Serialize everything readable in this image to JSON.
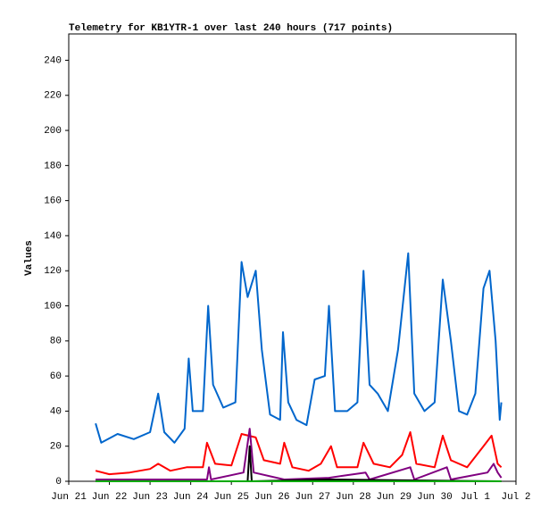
{
  "chart_data": {
    "type": "line",
    "title": "Telemetry for KB1YTR-1 over last 240 hours (717 points)",
    "y_label": "Values",
    "xlim": [
      0,
      11
    ],
    "xticks": [
      {
        "value": 0,
        "label": "Jun 21"
      },
      {
        "value": 1,
        "label": "Jun 22"
      },
      {
        "value": 2,
        "label": "Jun 23"
      },
      {
        "value": 3,
        "label": "Jun 24"
      },
      {
        "value": 4,
        "label": "Jun 25"
      },
      {
        "value": 5,
        "label": "Jun 26"
      },
      {
        "value": 6,
        "label": "Jun 27"
      },
      {
        "value": 7,
        "label": "Jun 28"
      },
      {
        "value": 8,
        "label": "Jun 29"
      },
      {
        "value": 9,
        "label": "Jun 30"
      },
      {
        "value": 10,
        "label": "Jul 1"
      },
      {
        "value": 11,
        "label": "Jul 2"
      }
    ],
    "ylim": [
      0,
      255
    ],
    "yticks": [
      0,
      20,
      40,
      60,
      80,
      100,
      120,
      140,
      160,
      180,
      200,
      220,
      240
    ],
    "series": [
      {
        "color": "#0066cc",
        "x": [
          0.66,
          0.8,
          1.2,
          1.6,
          2.0,
          2.2,
          2.35,
          2.6,
          2.85,
          2.95,
          3.05,
          3.3,
          3.43,
          3.55,
          3.8,
          4.1,
          4.25,
          4.4,
          4.6,
          4.75,
          4.95,
          5.2,
          5.27,
          5.4,
          5.6,
          5.85,
          6.05,
          6.3,
          6.4,
          6.55,
          6.85,
          7.1,
          7.25,
          7.4,
          7.6,
          7.85,
          8.1,
          8.35,
          8.5,
          8.75,
          9.0,
          9.2,
          9.4,
          9.6,
          9.8,
          10.0,
          10.2,
          10.35,
          10.5,
          10.6,
          10.64
        ],
        "values": [
          33,
          22,
          27,
          24,
          28,
          50,
          28,
          22,
          30,
          70,
          40,
          40,
          100,
          55,
          42,
          45,
          125,
          105,
          120,
          75,
          38,
          35,
          85,
          45,
          35,
          32,
          58,
          60,
          100,
          40,
          40,
          45,
          120,
          55,
          50,
          40,
          75,
          130,
          50,
          40,
          45,
          115,
          80,
          40,
          38,
          50,
          110,
          120,
          80,
          35,
          45
        ]
      },
      {
        "color": "#ff0000",
        "x": [
          0.66,
          1.0,
          1.5,
          2.0,
          2.2,
          2.5,
          2.9,
          3.3,
          3.4,
          3.6,
          4.0,
          4.25,
          4.6,
          4.8,
          5.2,
          5.3,
          5.5,
          5.9,
          6.2,
          6.45,
          6.6,
          7.1,
          7.25,
          7.5,
          7.9,
          8.2,
          8.4,
          8.55,
          9.0,
          9.2,
          9.4,
          9.8,
          10.2,
          10.4,
          10.55,
          10.64
        ],
        "values": [
          6,
          4,
          5,
          7,
          10,
          6,
          8,
          8,
          22,
          10,
          9,
          27,
          25,
          12,
          10,
          22,
          8,
          6,
          10,
          20,
          8,
          8,
          22,
          10,
          8,
          15,
          28,
          10,
          8,
          26,
          12,
          8,
          20,
          26,
          10,
          8
        ]
      },
      {
        "color": "#800080",
        "x": [
          0.66,
          3.4,
          3.45,
          3.5,
          4.3,
          4.45,
          4.55,
          5.3,
          6.4,
          7.3,
          7.4,
          8.4,
          8.5,
          9.3,
          9.4,
          10.3,
          10.45,
          10.55,
          10.64
        ],
        "values": [
          1,
          1,
          8,
          1,
          5,
          30,
          5,
          1,
          2,
          5,
          1,
          8,
          1,
          8,
          1,
          5,
          10,
          5,
          2
        ]
      },
      {
        "color": "#000000",
        "x": [
          0.66,
          4.4,
          4.45,
          4.5,
          6.4,
          10.64
        ],
        "values": [
          0,
          0,
          20,
          0,
          1,
          0
        ]
      },
      {
        "color": "#00aa00",
        "x": [
          0.66,
          10.64
        ],
        "values": [
          0,
          0
        ]
      }
    ]
  }
}
